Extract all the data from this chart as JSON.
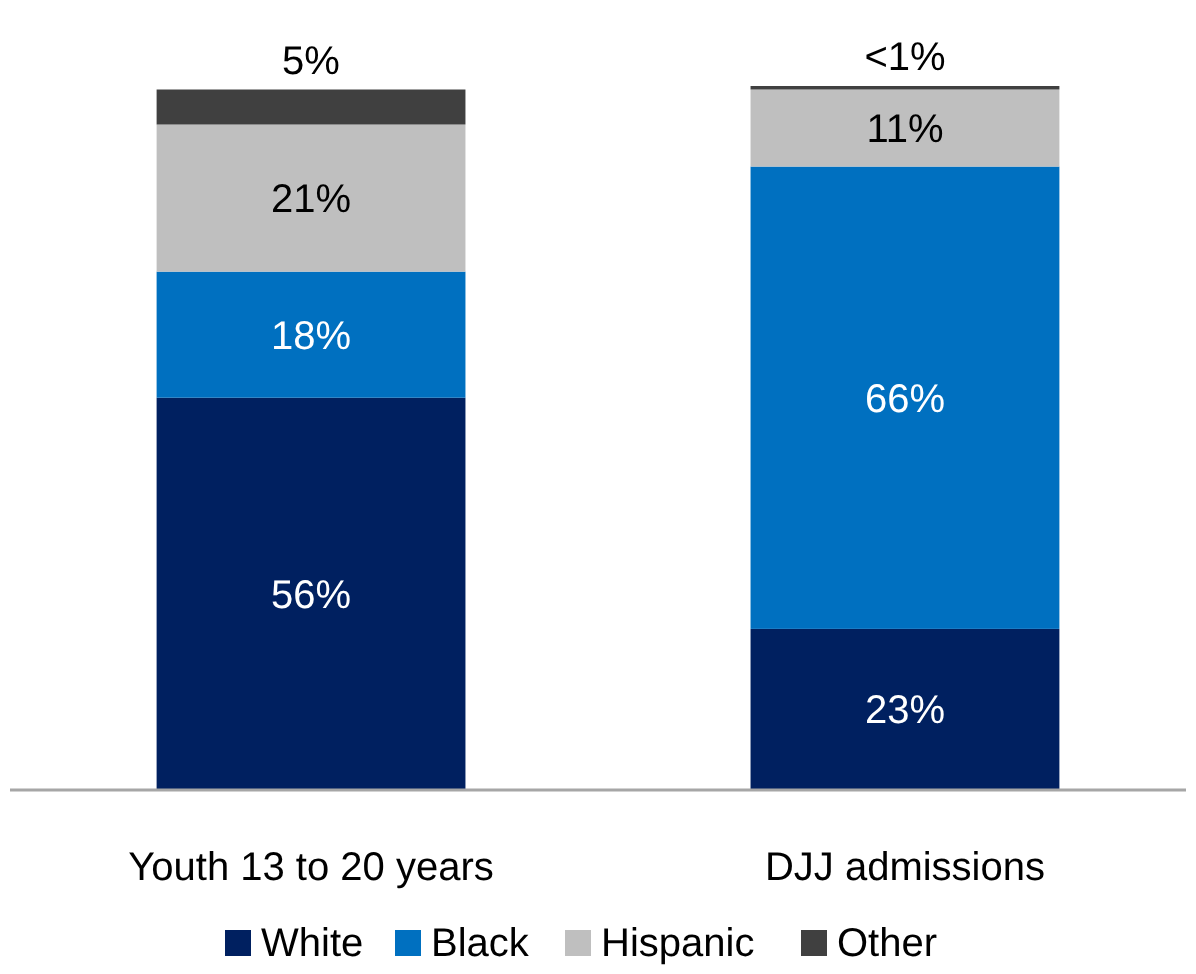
{
  "chart_data": {
    "type": "bar",
    "stacked": true,
    "categories": [
      "Youth 13 to 20 years",
      "DJJ admissions"
    ],
    "series": [
      {
        "name": "White",
        "color": "#002060",
        "values": [
          56,
          23
        ],
        "value_labels": [
          "56%",
          "23%"
        ]
      },
      {
        "name": "Black",
        "color": "#0070c0",
        "values": [
          18,
          66
        ],
        "value_labels": [
          "18%",
          "66%"
        ]
      },
      {
        "name": "Hispanic",
        "color": "#bfbfbf",
        "values": [
          21,
          11
        ],
        "value_labels": [
          "21%",
          "11%"
        ]
      },
      {
        "name": "Other",
        "color": "#404040",
        "values": [
          5,
          0.5
        ],
        "value_labels": [
          "5%",
          "<1%"
        ]
      }
    ],
    "legend": "bottom"
  }
}
